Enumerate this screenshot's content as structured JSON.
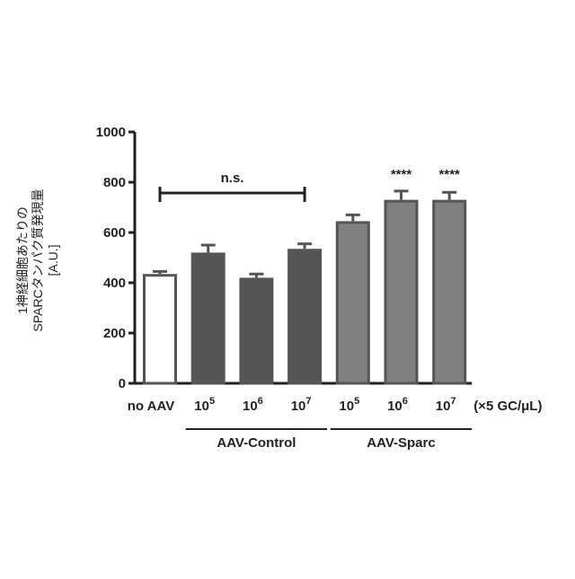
{
  "chart_data": {
    "type": "bar",
    "y_label_lines": [
      "1神経細胞あたりの",
      "SPARCタンパク質発現量",
      "[A.U.]"
    ],
    "categories": [
      "no AAV",
      "10",
      "10",
      "10",
      "10",
      "10",
      "10"
    ],
    "category_superscripts": [
      null,
      "5",
      "6",
      "7",
      "5",
      "6",
      "7"
    ],
    "unit_label": "(×5 GC/μL)",
    "values": [
      435,
      520,
      420,
      535,
      645,
      730,
      730
    ],
    "errors": [
      10,
      30,
      15,
      20,
      25,
      35,
      30
    ],
    "colors": [
      "#ffffff",
      "#555555",
      "#555555",
      "#555555",
      "#808080",
      "#808080",
      "#808080"
    ],
    "edge_color": "#555555",
    "groups": [
      {
        "label": "AAV-Control",
        "categories": [
          1,
          2,
          3
        ]
      },
      {
        "label": "AAV-Sparc",
        "categories": [
          4,
          5,
          6
        ]
      }
    ],
    "bracket": {
      "label": "n.s.",
      "categories": [
        0,
        3
      ]
    },
    "stars": [
      {
        "category": 5,
        "label": "****"
      },
      {
        "category": 6,
        "label": "****"
      }
    ],
    "ylim": [
      0,
      1000
    ],
    "yticks": [
      0,
      200,
      400,
      600,
      800,
      1000
    ]
  }
}
